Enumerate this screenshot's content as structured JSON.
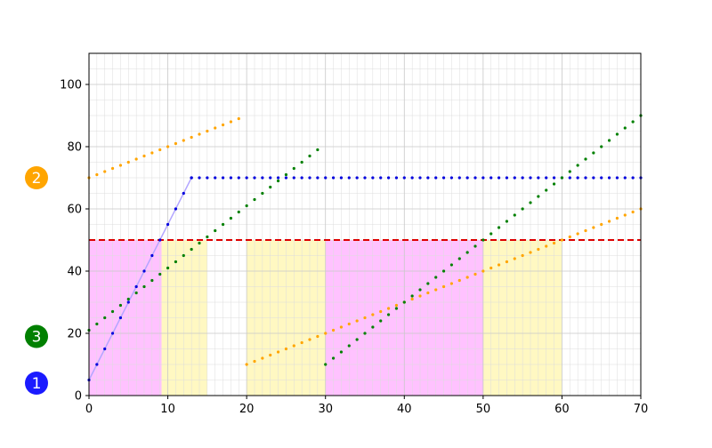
{
  "chart_data": {
    "type": "scatter",
    "title": "",
    "xlabel": "",
    "ylabel": "",
    "xlim": [
      0,
      70
    ],
    "ylim": [
      0,
      110
    ],
    "grid": true,
    "minor_grid": true,
    "x_ticks": [
      0,
      10,
      20,
      30,
      40,
      50,
      60,
      70
    ],
    "y_ticks": [
      0,
      20,
      40,
      60,
      80,
      100
    ],
    "threshold": {
      "y": 50,
      "color": "#dd0000",
      "style": "dashed"
    },
    "shaded_regions": [
      {
        "x0": 0,
        "x1": 9.2,
        "y0": 0,
        "y1": 50,
        "color": "#ff66ff"
      },
      {
        "x0": 9.2,
        "x1": 15,
        "y0": 0,
        "y1": 50,
        "color": "#ffee66"
      },
      {
        "x0": 20,
        "x1": 30,
        "y0": 0,
        "y1": 50,
        "color": "#ffee66"
      },
      {
        "x0": 30,
        "x1": 50,
        "y0": 0,
        "y1": 50,
        "color": "#ff66ff"
      },
      {
        "x0": 50,
        "x1": 60,
        "y0": 0,
        "y1": 50,
        "color": "#ffee66"
      }
    ],
    "series": [
      {
        "marker_label": "1",
        "color": "#0000dd",
        "label_color": "#1a1aff",
        "label_y": 4,
        "connecting_line": {
          "color": "#b3a6ff",
          "points": [
            [
              0,
              5
            ],
            [
              13,
              70
            ]
          ]
        },
        "segments": [
          {
            "x_start": 0,
            "x_end": 13,
            "step": 1,
            "y_start": 5,
            "slope": 5
          },
          {
            "x_start": 13,
            "x_end": 70,
            "step": 1,
            "y_start": 70,
            "slope": 0
          }
        ]
      },
      {
        "marker_label": "2",
        "color": "#ffa500",
        "label_color": "#ffa500",
        "label_y": 70,
        "segments": [
          {
            "x_start": 0,
            "x_end": 19,
            "step": 1,
            "y_start": 70,
            "slope": 1
          },
          {
            "x_start": 20,
            "x_end": 70,
            "step": 1,
            "y_start": 10,
            "slope": 1
          }
        ]
      },
      {
        "marker_label": "3",
        "color": "#008000",
        "label_color": "#008000",
        "label_y": 19,
        "segments": [
          {
            "x_start": 0,
            "x_end": 29,
            "step": 1,
            "y_start": 21,
            "slope": 2
          },
          {
            "x_start": 30,
            "x_end": 70,
            "step": 1,
            "y_start": 10,
            "slope": 2
          }
        ]
      }
    ]
  }
}
